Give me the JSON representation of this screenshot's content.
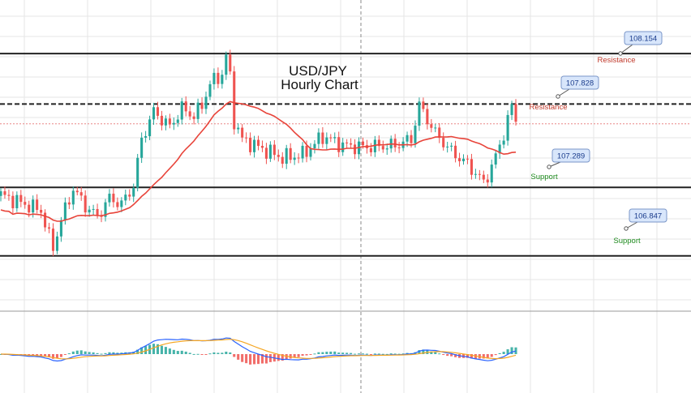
{
  "chart_data": {
    "type": "candlestick",
    "title_line1": "USD/JPY",
    "title_line2": "Hourly Chart",
    "price_range": [
      106.72,
      108.28
    ],
    "levels": [
      {
        "value": 108.154,
        "value_text": "108.154",
        "label": "Resistance",
        "kind": "resistance",
        "line_style": "solid"
      },
      {
        "value": 107.828,
        "value_text": "107.828",
        "label": "Resistance",
        "kind": "resistance",
        "line_style": "dashed"
      },
      {
        "value": 107.289,
        "value_text": "107.289",
        "label": "Support",
        "kind": "support",
        "line_style": "solid"
      },
      {
        "value": 106.847,
        "value_text": "106.847",
        "label": "Support",
        "kind": "support",
        "line_style": "solid"
      }
    ],
    "current_price": 107.7,
    "anchors": [
      [
        0,
        107.24
      ],
      [
        6,
        107.18
      ],
      [
        10,
        107.14
      ],
      [
        12,
        106.97
      ],
      [
        13,
        106.9
      ],
      [
        15,
        107.08
      ],
      [
        18,
        107.28
      ],
      [
        21,
        107.17
      ],
      [
        24,
        107.1
      ],
      [
        27,
        107.22
      ],
      [
        30,
        107.18
      ],
      [
        33,
        107.3
      ],
      [
        35,
        107.6
      ],
      [
        38,
        107.78
      ],
      [
        42,
        107.68
      ],
      [
        45,
        107.8
      ],
      [
        48,
        107.75
      ],
      [
        50,
        107.82
      ],
      [
        52,
        107.96
      ],
      [
        55,
        108.02
      ],
      [
        56,
        108.14
      ],
      [
        57,
        108.0
      ],
      [
        58,
        107.72
      ],
      [
        60,
        107.6
      ],
      [
        64,
        107.55
      ],
      [
        70,
        107.48
      ],
      [
        75,
        107.5
      ],
      [
        80,
        107.62
      ],
      [
        85,
        107.56
      ],
      [
        90,
        107.55
      ],
      [
        98,
        107.56
      ],
      [
        102,
        107.6
      ],
      [
        104,
        107.82
      ],
      [
        108,
        107.64
      ],
      [
        112,
        107.52
      ],
      [
        116,
        107.44
      ],
      [
        120,
        107.32
      ],
      [
        122,
        107.42
      ],
      [
        124,
        107.56
      ],
      [
        126,
        107.72
      ],
      [
        127,
        107.82
      ],
      [
        128,
        107.72
      ]
    ],
    "candle_count": 129,
    "moving_average_window": 20,
    "macd_grid_hint": "lower panel shows MACD histogram, MACD line and signal line"
  },
  "colors": {
    "bull": "#26a69a",
    "bear": "#ef5350",
    "moving_average": "#e8443a",
    "level_line": "#222222",
    "resistance_label": "#c0392b",
    "support_label": "#1e8a1e",
    "callout_fill": "#d8e6fb",
    "callout_stroke": "#7a96c8",
    "macd_line": "#2962ff",
    "signal_line": "#f5a623",
    "grid": "#e6e6e6"
  }
}
